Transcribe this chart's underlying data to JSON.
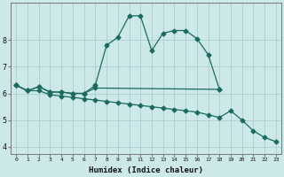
{
  "line1_x": [
    0,
    1,
    2,
    3,
    4,
    5,
    6,
    7,
    8,
    9,
    10,
    11,
    12,
    13,
    14,
    15,
    16,
    17,
    18
  ],
  "line1_y": [
    6.3,
    6.1,
    6.25,
    6.05,
    6.05,
    6.0,
    6.0,
    6.3,
    7.8,
    8.1,
    8.9,
    8.9,
    7.6,
    8.25,
    8.35,
    8.35,
    8.05,
    7.45,
    6.15
  ],
  "line2_x": [
    0,
    1,
    2,
    3,
    4,
    5,
    6,
    7,
    18
  ],
  "line2_y": [
    6.3,
    6.1,
    6.25,
    6.05,
    6.05,
    6.0,
    6.0,
    6.2,
    6.15
  ],
  "line3_x": [
    0,
    1,
    2,
    3,
    4,
    5,
    6,
    7,
    8,
    9,
    10,
    11,
    12,
    13,
    14,
    15,
    16,
    17,
    18,
    19,
    20,
    21,
    22,
    23
  ],
  "line3_y": [
    6.3,
    6.1,
    6.1,
    5.95,
    5.9,
    5.85,
    5.8,
    5.75,
    5.7,
    5.65,
    5.6,
    5.55,
    5.5,
    5.45,
    5.4,
    5.35,
    5.3,
    5.2,
    5.1,
    5.35,
    5.0,
    4.6,
    4.35,
    4.2
  ],
  "color": "#1a6b5e",
  "bg_color": "#cce8e8",
  "grid_color": "#aacfcf",
  "xlabel": "Humidex (Indice chaleur)",
  "xlim": [
    -0.5,
    23.5
  ],
  "ylim": [
    3.75,
    9.4
  ],
  "yticks": [
    4,
    5,
    6,
    7,
    8
  ],
  "xticks": [
    0,
    1,
    2,
    3,
    4,
    5,
    6,
    7,
    8,
    9,
    10,
    11,
    12,
    13,
    14,
    15,
    16,
    17,
    18,
    19,
    20,
    21,
    22,
    23
  ],
  "markersize": 2.5,
  "linewidth": 0.9
}
